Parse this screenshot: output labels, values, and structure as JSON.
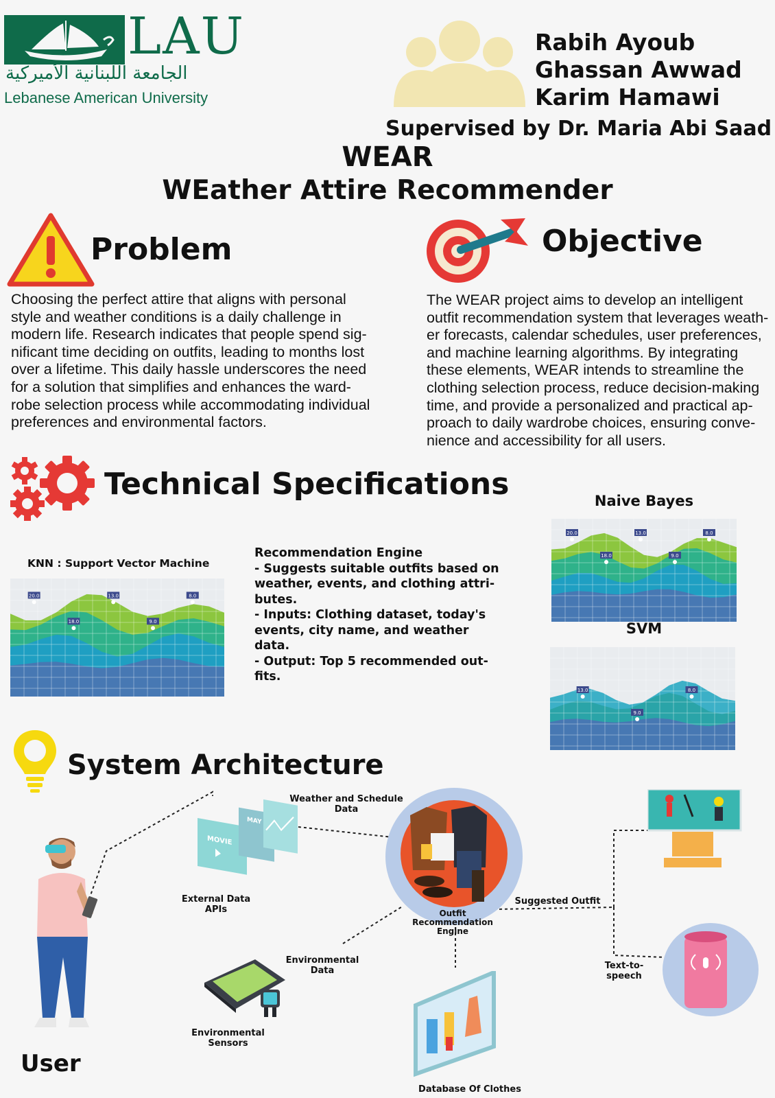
{
  "logo": {
    "name": "LAU",
    "arabic": "الجامعة اللبنانية الأميركية",
    "english": "Lebanese American University"
  },
  "authors": [
    "Rabih Ayoub",
    "Ghassan Awwad",
    "Karim Hamawi"
  ],
  "supervisor": "Supervised by Dr. Maria Abi Saad",
  "title": {
    "line1": "WEAR",
    "line2": "WEather Attire Recommender"
  },
  "problem": {
    "heading": "Problem",
    "lines": [
      "Choosing the perfect attire that aligns with personal",
      "style and weather conditions is a daily challenge in",
      "modern life. Research indicates that people spend sig-",
      "nificant time deciding on outfits, leading to months lost",
      "over a lifetime. This daily hassle underscores the need",
      "for a solution that simplifies and enhances the ward-",
      "robe selection process while accommodating individual",
      "preferences and environmental factors."
    ]
  },
  "objective": {
    "heading": "Objective",
    "lines": [
      "The WEAR project aims to develop an intelligent",
      "outfit recommendation system that leverages weath-",
      "er forecasts, calendar schedules, user preferences,",
      "and machine learning algorithms. By integrating",
      "these elements, WEAR intends to streamline the",
      "clothing selection process, reduce decision-making",
      "time, and provide a personalized and practical ap-",
      "proach to daily wardrobe choices, ensuring conve-",
      "nience and accessibility for all users."
    ]
  },
  "tech": {
    "heading": "Technical Specifications",
    "knn_label": "KNN : Support Vector Machine",
    "nb_label": "Naive Bayes",
    "svm_label": "SVM",
    "rec_lines": [
      "Recommendation Engine",
      "- Suggests suitable outfits based on",
      "weather, events, and clothing attri-",
      "butes.",
      "- Inputs: Clothing dataset, today's",
      "events, city name, and weather",
      "data.",
      "- Output: Top 5 recommended out-",
      "fits."
    ]
  },
  "chart_data": [
    {
      "type": "area",
      "name": "knn",
      "markers": [
        "20.0",
        "18.0",
        "13.0",
        "9.0",
        "8.0"
      ]
    },
    {
      "type": "area",
      "name": "naive-bayes",
      "markers": [
        "20.0",
        "18.0",
        "13.0",
        "9.0",
        "8.0"
      ]
    },
    {
      "type": "area",
      "name": "svm",
      "markers": [
        "13.0",
        "9.0",
        "8.0"
      ]
    }
  ],
  "architecture": {
    "heading": "System Architecture",
    "user": "User",
    "external_apis": "External Data APIs",
    "weather_schedule": "Weather and Schedule Data",
    "engine": "Outfit Recommendation Engine",
    "suggested": "Suggested Outfit",
    "tts": "Text-to-speech",
    "env_data": "Environmental Data",
    "env_sensors": "Environmental Sensors",
    "database": "Database Of Clothes",
    "calendar_tab": "MAY",
    "movie_tab": "MOVIE"
  },
  "colors": {
    "lau_green": "#0f6b4a",
    "accent_red": "#e53935",
    "people_yellow": "#f2e6b2"
  }
}
